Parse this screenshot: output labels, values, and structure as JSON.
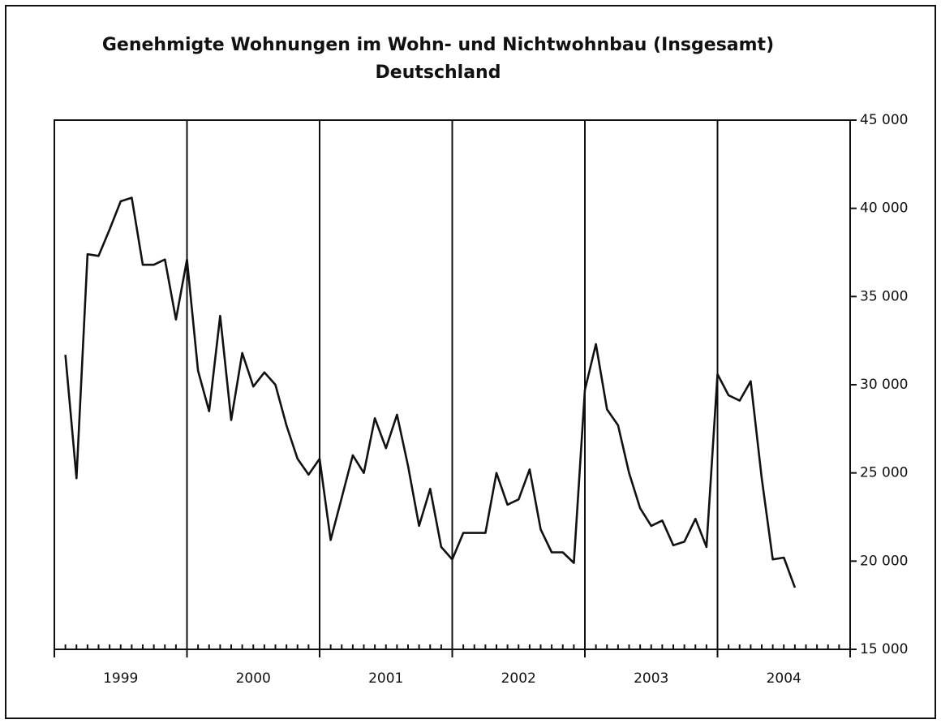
{
  "chart_data": {
    "type": "line",
    "title": "Genehmigte Wohnungen im Wohn- und Nichtwohnbau (Insgesamt)",
    "subtitle": "Deutschland",
    "years": [
      "1999",
      "2000",
      "2001",
      "2002",
      "2003",
      "2004"
    ],
    "categories": [
      null,
      null,
      null,
      null,
      null,
      null,
      null,
      null,
      null,
      null,
      null,
      null,
      null,
      null,
      null,
      null,
      null,
      null,
      null,
      null,
      null,
      null,
      null,
      null,
      null,
      null,
      null,
      null,
      null,
      null,
      null,
      null,
      null,
      null,
      null,
      null,
      null,
      null,
      null,
      null,
      null,
      null,
      null,
      null,
      null,
      null,
      null,
      null,
      null,
      null,
      null,
      null,
      null,
      null,
      null,
      null,
      null,
      null,
      null,
      null,
      null,
      null,
      null,
      null,
      null,
      null,
      null
    ],
    "series": [
      {
        "name": null,
        "color": "#111111",
        "values": [
          31700,
          24700,
          37400,
          37300,
          38800,
          40400,
          40600,
          36800,
          36800,
          37100,
          33700,
          37100,
          30800,
          28500,
          33900,
          28000,
          31800,
          29900,
          30700,
          30000,
          27700,
          25800,
          24900,
          25800,
          21200,
          23600,
          26000,
          25000,
          28100,
          26400,
          28300,
          25400,
          22000,
          24100,
          20800,
          20100,
          21600,
          21600,
          21600,
          25000,
          23200,
          23500,
          25200,
          21800,
          20500,
          20500,
          19900,
          29700,
          32300,
          28600,
          27700,
          25000,
          23000,
          22000,
          22300,
          20900,
          21100,
          22400,
          20800,
          30600,
          29400,
          29100,
          30200,
          24700,
          20100,
          20200,
          18500
        ]
      }
    ],
    "ylim": [
      15000,
      45000
    ],
    "yticks": [
      {
        "value": 15000,
        "label": "15 000"
      },
      {
        "value": 20000,
        "label": "20 000"
      },
      {
        "value": 25000,
        "label": "25 000"
      },
      {
        "value": 30000,
        "label": "30 000"
      },
      {
        "value": 35000,
        "label": "35 000"
      },
      {
        "value": 40000,
        "label": "40 000"
      },
      {
        "value": 45000,
        "label": "45 000"
      }
    ],
    "grid": false
  }
}
